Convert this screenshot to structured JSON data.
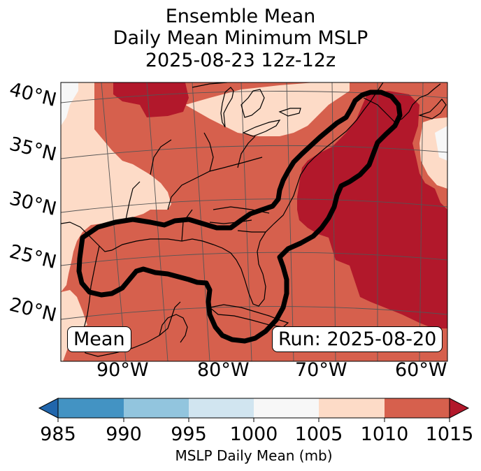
{
  "title": {
    "line1": "Ensemble Mean",
    "line2": "Daily Mean Minimum MSLP",
    "line3": "2025-08-23 12z-12z"
  },
  "map": {
    "lat_labels": [
      "40°N",
      "35°N",
      "30°N",
      "25°N",
      "20°N"
    ],
    "lon_labels": [
      "90°W",
      "80°W",
      "70°W",
      "60°W"
    ],
    "mean_box": "Mean",
    "run_box": "Run: 2025-08-20",
    "colors": {
      "c1000_1005": "#f7f7f7",
      "c1005_1010": "#fddbc7",
      "c1010_1015": "#d6604d",
      "c_over_1015": "#b2182b",
      "contour": "#000000",
      "coast": "#000000",
      "grid": "#555555"
    }
  },
  "colorbar": {
    "ticks": [
      "985",
      "990",
      "995",
      "1000",
      "1005",
      "1010",
      "1015"
    ],
    "label": "MSLP Daily Mean (mb)",
    "colors": [
      "#2166ac",
      "#4393c3",
      "#92c5de",
      "#d1e5f0",
      "#f7f7f7",
      "#fddbc7",
      "#d6604d",
      "#b2182b"
    ]
  }
}
